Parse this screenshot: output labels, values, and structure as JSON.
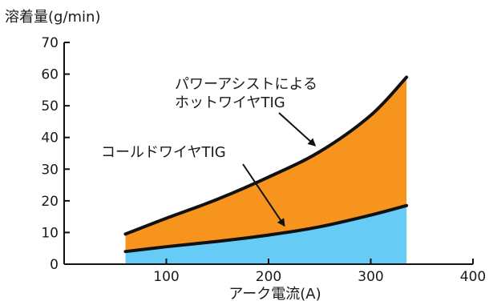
{
  "chart_data": {
    "type": "area",
    "ylabel": "溶着量(g/min)",
    "xlabel": "アーク電流(A)",
    "xlim": [
      0,
      400
    ],
    "ylim": [
      0,
      70
    ],
    "x_ticks": [
      100,
      200,
      300,
      400
    ],
    "y_ticks": [
      0,
      10,
      20,
      30,
      40,
      50,
      60,
      70
    ],
    "grid": false,
    "series": [
      {
        "name": "パワーアシストによるホットワイヤTIG",
        "label_lines": [
          "パワーアシストによる",
          "ホットワイヤTIG"
        ],
        "fill_color": "#f7941d",
        "line_color": "#111111",
        "x": [
          60,
          100,
          150,
          200,
          250,
          300,
          335
        ],
        "y": [
          9.5,
          14.5,
          20.5,
          27.5,
          35.5,
          47,
          59
        ]
      },
      {
        "name": "コールドワイヤTIG",
        "label_lines": [
          "コールドワイヤTIG"
        ],
        "fill_color": "#66ccf5",
        "line_color": "#111111",
        "x": [
          60,
          100,
          150,
          200,
          250,
          300,
          335
        ],
        "y": [
          4,
          5.5,
          7.2,
          9.2,
          11.8,
          15.5,
          18.5
        ]
      }
    ],
    "annotations": [
      {
        "series": 0,
        "arrow_to": [
          250,
          35.5
        ]
      },
      {
        "series": 1,
        "arrow_to": [
          220,
          10.2
        ]
      }
    ]
  }
}
